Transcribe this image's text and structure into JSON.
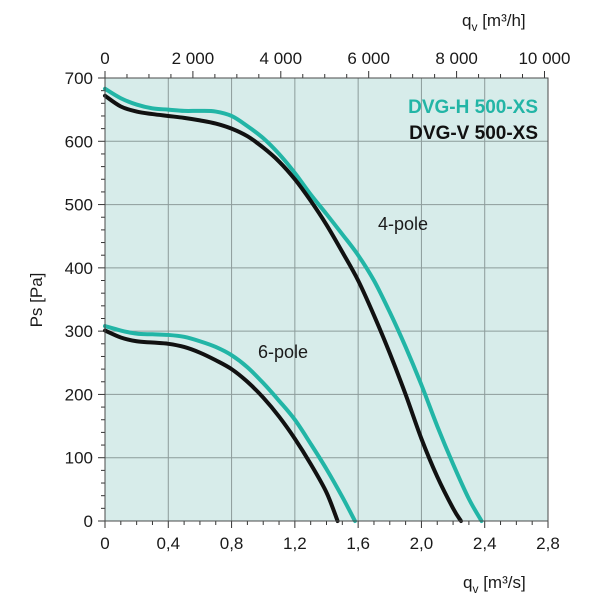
{
  "chart_data": {
    "type": "line",
    "x_bottom": {
      "label_main": "q",
      "label_sub": "v",
      "label_unit": " [m³/s]",
      "range": [
        0,
        2.8
      ],
      "ticks": [
        0,
        0.4,
        0.8,
        1.2,
        1.6,
        2.0,
        2.4,
        2.8
      ],
      "tick_labels": [
        "0",
        "0,4",
        "0,8",
        "1,2",
        "1,6",
        "2,0",
        "2,4",
        "2,8"
      ]
    },
    "x_top": {
      "label_main": "q",
      "label_sub": "v",
      "label_unit": " [m³/h]",
      "range": [
        0,
        10080
      ],
      "ticks": [
        0,
        2000,
        4000,
        6000,
        8000,
        10000
      ],
      "tick_labels": [
        "0",
        "2 000",
        "4 000",
        "6 000",
        "8 000",
        "10 000"
      ]
    },
    "y": {
      "label": "Ps [Pa]",
      "range": [
        0,
        700
      ],
      "ticks": [
        0,
        100,
        200,
        300,
        400,
        500,
        600,
        700
      ],
      "tick_labels": [
        "0",
        "100",
        "200",
        "300",
        "400",
        "500",
        "600",
        "700"
      ]
    },
    "grid": true,
    "background": "#d7ecea",
    "legend": {
      "position": "top-right",
      "items": [
        {
          "label": "DVG-H 500-XS",
          "color": "#22b5a6"
        },
        {
          "label": "DVG-V 500-XS",
          "color": "#111111"
        }
      ]
    },
    "annotations": [
      {
        "text": "4-pole",
        "x": 1.74,
        "y": 465
      },
      {
        "text": "6-pole",
        "x": 0.97,
        "y": 262
      }
    ],
    "series": [
      {
        "name": "DVG-H 500-XS",
        "group": "4-pole",
        "color": "#22b5a6",
        "points": [
          [
            0,
            683
          ],
          [
            0.1,
            668
          ],
          [
            0.2,
            658
          ],
          [
            0.3,
            652
          ],
          [
            0.4,
            650
          ],
          [
            0.5,
            648
          ],
          [
            0.6,
            648
          ],
          [
            0.7,
            647
          ],
          [
            0.8,
            640
          ],
          [
            0.9,
            624
          ],
          [
            1.0,
            605
          ],
          [
            1.1,
            580
          ],
          [
            1.2,
            550
          ],
          [
            1.3,
            516
          ],
          [
            1.4,
            485
          ],
          [
            1.5,
            453
          ],
          [
            1.6,
            420
          ],
          [
            1.7,
            380
          ],
          [
            1.8,
            330
          ],
          [
            1.9,
            275
          ],
          [
            2.0,
            215
          ],
          [
            2.1,
            150
          ],
          [
            2.2,
            90
          ],
          [
            2.3,
            35
          ],
          [
            2.38,
            0
          ]
        ]
      },
      {
        "name": "DVG-V 500-XS",
        "group": "4-pole",
        "color": "#111111",
        "points": [
          [
            0,
            672
          ],
          [
            0.1,
            655
          ],
          [
            0.2,
            647
          ],
          [
            0.3,
            643
          ],
          [
            0.4,
            640
          ],
          [
            0.5,
            637
          ],
          [
            0.6,
            633
          ],
          [
            0.7,
            628
          ],
          [
            0.8,
            620
          ],
          [
            0.9,
            608
          ],
          [
            1.0,
            590
          ],
          [
            1.1,
            568
          ],
          [
            1.2,
            540
          ],
          [
            1.3,
            506
          ],
          [
            1.4,
            468
          ],
          [
            1.5,
            425
          ],
          [
            1.6,
            380
          ],
          [
            1.7,
            325
          ],
          [
            1.8,
            265
          ],
          [
            1.9,
            200
          ],
          [
            2.0,
            130
          ],
          [
            2.1,
            70
          ],
          [
            2.2,
            20
          ],
          [
            2.25,
            0
          ]
        ]
      },
      {
        "name": "DVG-H 500-XS",
        "group": "6-pole",
        "color": "#22b5a6",
        "points": [
          [
            0,
            308
          ],
          [
            0.1,
            301
          ],
          [
            0.2,
            296
          ],
          [
            0.3,
            295
          ],
          [
            0.4,
            294
          ],
          [
            0.5,
            291
          ],
          [
            0.6,
            284
          ],
          [
            0.7,
            275
          ],
          [
            0.8,
            262
          ],
          [
            0.9,
            243
          ],
          [
            1.0,
            218
          ],
          [
            1.1,
            190
          ],
          [
            1.2,
            160
          ],
          [
            1.3,
            122
          ],
          [
            1.4,
            82
          ],
          [
            1.5,
            38
          ],
          [
            1.58,
            0
          ]
        ]
      },
      {
        "name": "DVG-V 500-XS",
        "group": "6-pole",
        "color": "#111111",
        "points": [
          [
            0,
            301
          ],
          [
            0.1,
            290
          ],
          [
            0.2,
            284
          ],
          [
            0.3,
            282
          ],
          [
            0.4,
            280
          ],
          [
            0.5,
            275
          ],
          [
            0.6,
            266
          ],
          [
            0.7,
            254
          ],
          [
            0.8,
            240
          ],
          [
            0.9,
            220
          ],
          [
            1.0,
            195
          ],
          [
            1.1,
            165
          ],
          [
            1.2,
            130
          ],
          [
            1.3,
            90
          ],
          [
            1.4,
            45
          ],
          [
            1.47,
            0
          ]
        ]
      }
    ]
  }
}
